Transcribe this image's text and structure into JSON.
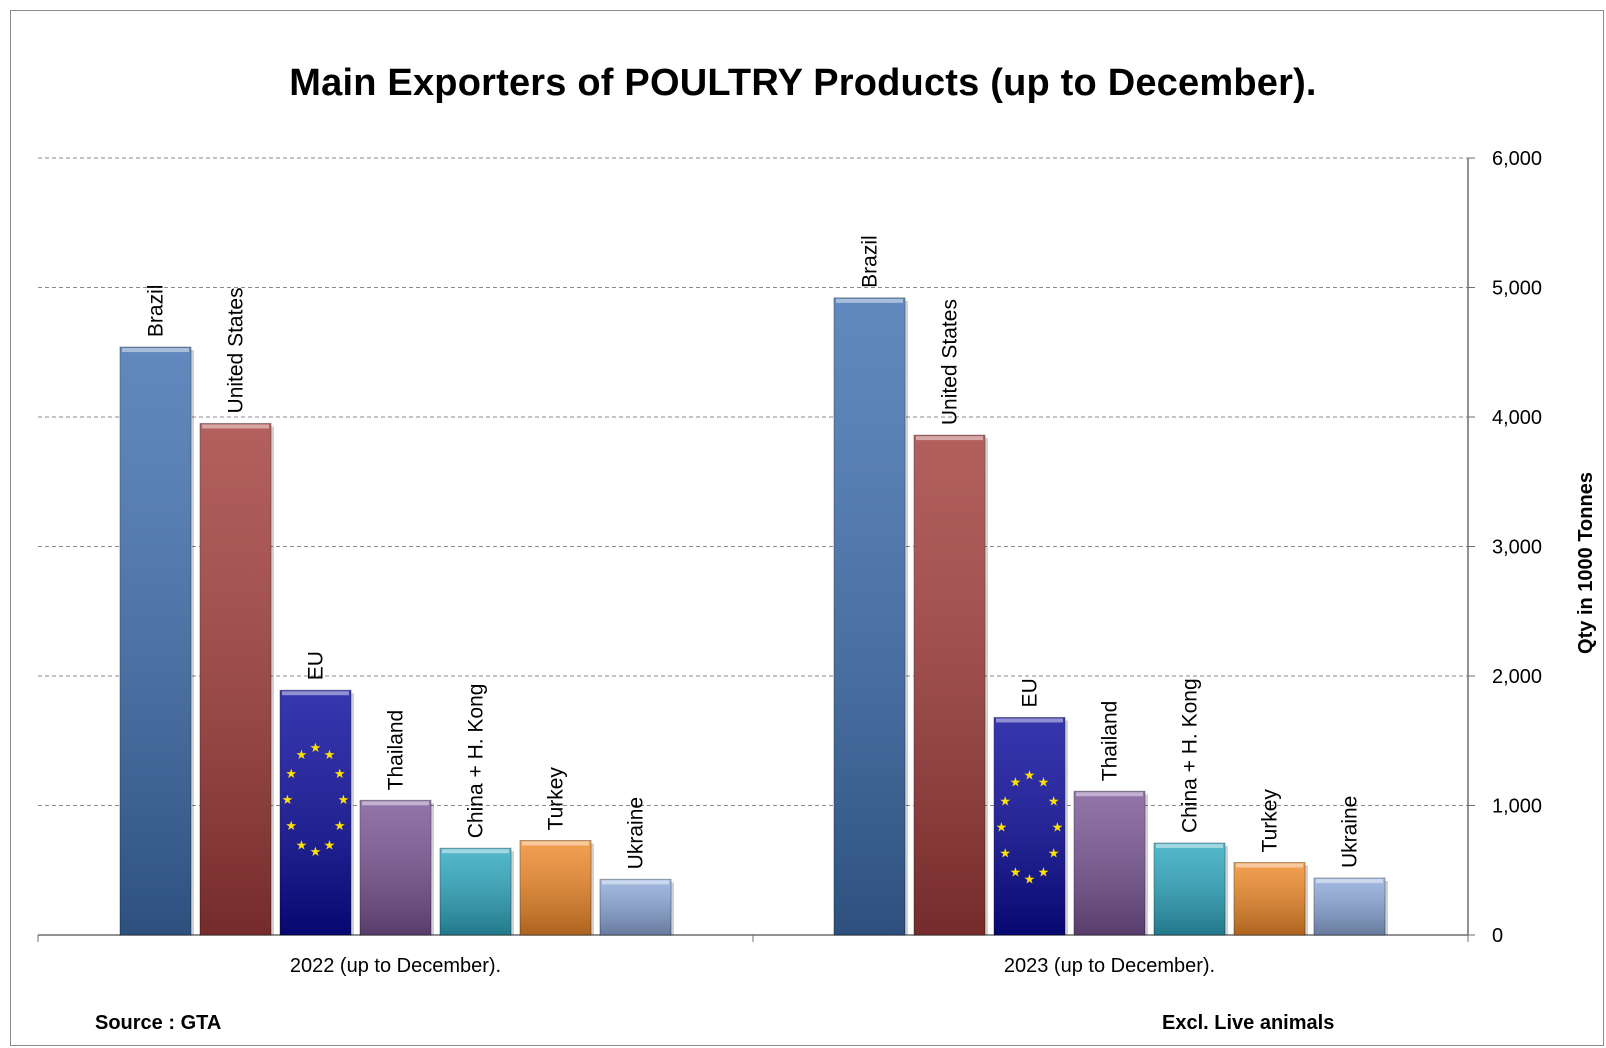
{
  "chart_data": {
    "type": "bar",
    "title": "Main Exporters of POULTRY Products (up to December).",
    "ylabel": "Qty in 1000 Tonnes",
    "ylim": [
      0,
      6000
    ],
    "yticks": [
      "0",
      "1,000",
      "2,000",
      "3,000",
      "4,000",
      "5,000",
      "6,000"
    ],
    "grid": true,
    "y_axis_side": "right",
    "categories": [
      "2022 (up to December).",
      "2023 (up to December)."
    ],
    "series": [
      {
        "name": "Brazil",
        "color": "#3e6fb0",
        "values": [
          4540,
          4920
        ]
      },
      {
        "name": "United States",
        "color": "#a23c3a",
        "values": [
          3950,
          3860
        ]
      },
      {
        "name": "EU",
        "color": "#0a0a9c",
        "values": [
          1890,
          1680
        ]
      },
      {
        "name": "Thailand",
        "color": "#7a5596",
        "values": [
          1040,
          1110
        ]
      },
      {
        "name": "China + H. Kong",
        "color": "#2ea8c0",
        "values": [
          670,
          710
        ]
      },
      {
        "name": "Turkey",
        "color": "#f08a2a",
        "values": [
          730,
          560
        ]
      },
      {
        "name": "Ukraine",
        "color": "#8eaadb",
        "values": [
          430,
          440
        ]
      }
    ]
  },
  "footer": {
    "source": "Source : GTA",
    "note": "Excl. Live animals"
  }
}
